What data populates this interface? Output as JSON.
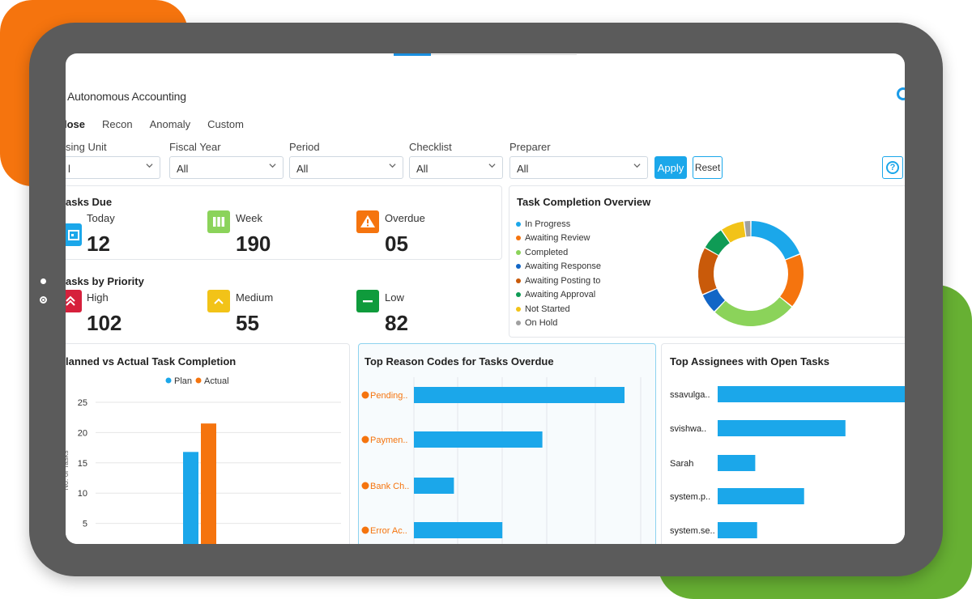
{
  "app": {
    "title": "Autonomous Accounting"
  },
  "tabs": [
    {
      "label": "lose",
      "active": true
    },
    {
      "label": "Recon",
      "active": false
    },
    {
      "label": "Anomaly",
      "active": false
    },
    {
      "label": "Custom",
      "active": false
    }
  ],
  "filters": [
    {
      "label": "sing Unit",
      "value": "l"
    },
    {
      "label": "Fiscal Year",
      "value": "All"
    },
    {
      "label": "Period",
      "value": "All"
    },
    {
      "label": "Checklist",
      "value": "All"
    },
    {
      "label": "Preparer",
      "value": "All"
    }
  ],
  "buttons": {
    "apply": "Apply",
    "reset": "Reset"
  },
  "tasks_due": {
    "title": "asks Due",
    "items": [
      {
        "label": "Today",
        "value": "12",
        "icon": "calendar-icon",
        "color": "#1ba7ea"
      },
      {
        "label": "Week",
        "value": "190",
        "icon": "week-columns-icon",
        "color": "#8bd35a"
      },
      {
        "label": "Overdue",
        "value": "05",
        "icon": "warning-icon",
        "color": "#f5740e"
      }
    ]
  },
  "tasks_priority": {
    "title": "asks by Priority",
    "items": [
      {
        "label": "High",
        "value": "102",
        "icon": "double-chevron-up-icon",
        "color": "#d6203c"
      },
      {
        "label": "Medium",
        "value": "55",
        "icon": "chevron-up-icon",
        "color": "#f2c318"
      },
      {
        "label": "Low",
        "value": "82",
        "icon": "minus-icon",
        "color": "#0f9b3c"
      }
    ]
  },
  "completion_overview": {
    "title": "Task Completion Overview",
    "chart_data": {
      "type": "pie",
      "categories": [
        "In Progress",
        "Awaiting Review",
        "Completed",
        "Awaiting Response",
        "Awaiting Posting to",
        "Awaiting Approval",
        "Not Started",
        "On Hold"
      ],
      "values": [
        18,
        16,
        25,
        6,
        14,
        7,
        7,
        2
      ],
      "colors": [
        "#1ba7ea",
        "#f5740e",
        "#8bd35a",
        "#1266c6",
        "#c95a0a",
        "#0f9b55",
        "#f2c318",
        "#a0a0a0"
      ]
    }
  },
  "planned_actual": {
    "title": "lanned vs Actual Task Completion",
    "chart_data": {
      "type": "bar",
      "series": [
        {
          "name": "Plan",
          "color": "#1ba7ea",
          "values": [
            16.8
          ]
        },
        {
          "name": "Actual",
          "color": "#f5740e",
          "values": [
            21.5
          ]
        }
      ],
      "yticks": [
        "25",
        "20",
        "15",
        "10",
        "5"
      ],
      "ylim": [
        0,
        25
      ],
      "ylabel": "No. of Tasks",
      "legend": "top-center",
      "grid": true
    }
  },
  "reason_codes": {
    "title": "Top Reason Codes for Tasks Overdue",
    "chart_data": {
      "type": "bar",
      "orientation": "horizontal",
      "categories": [
        "Pending..",
        "Paymen..",
        "Bank Ch..",
        "Error Ac.."
      ],
      "values": [
        1.0,
        0.61,
        0.19,
        0.42
      ],
      "color": "#1ba7ea",
      "label_color": "#f5740e",
      "grid": true
    }
  },
  "assignees": {
    "title": "Top Assignees with Open Tasks",
    "chart_data": {
      "type": "bar",
      "orientation": "horizontal",
      "categories": [
        "ssavulga..",
        "svishwa..",
        "Sarah",
        "system.p..",
        "system.se.."
      ],
      "values": [
        1.0,
        0.68,
        0.2,
        0.46,
        0.21
      ],
      "color": "#1ba7ea"
    }
  }
}
